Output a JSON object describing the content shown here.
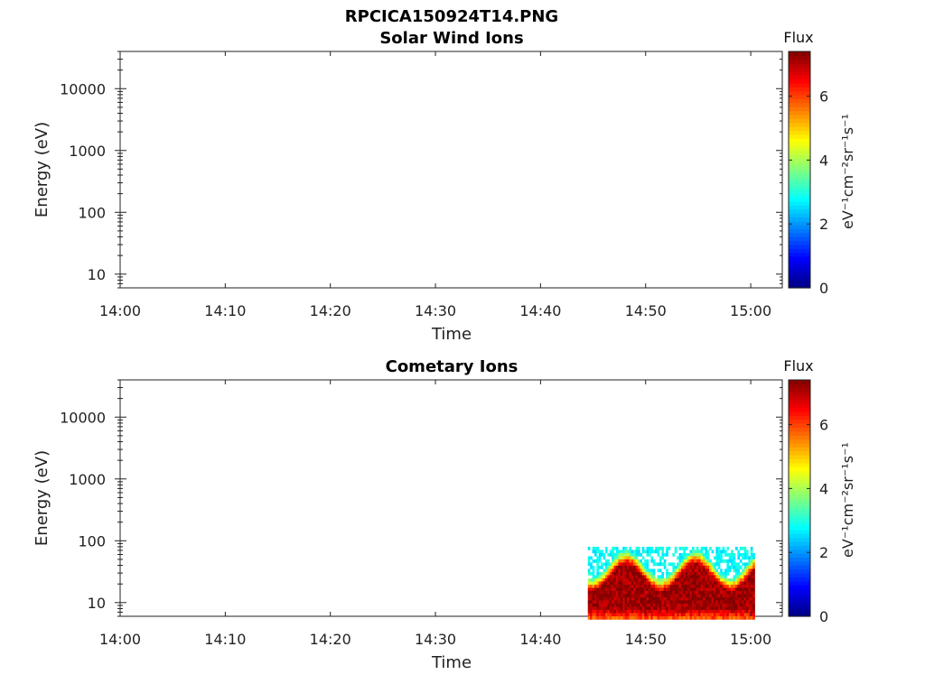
{
  "chart_data": [
    {
      "type": "heatmap",
      "suptitle": "RPCICA150924T14.PNG",
      "title": "Solar Wind Ions",
      "xlabel": "Time",
      "ylabel": "Energy (eV)",
      "x_ticks": [
        "14:00",
        "14:10",
        "14:20",
        "14:30",
        "14:40",
        "14:50",
        "15:00"
      ],
      "xlim_minutes": [
        0,
        63
      ],
      "y_scale": "log",
      "y_ticks": [
        10,
        100,
        1000,
        10000
      ],
      "y_tick_labels": [
        "10",
        "100",
        "1000",
        "10000"
      ],
      "ylim": [
        6,
        40000
      ],
      "colorbar": {
        "title": "Flux",
        "label": "eV⁻¹cm⁻²sr⁻¹s⁻¹",
        "ticks": [
          "0",
          "2",
          "4",
          "6"
        ],
        "range": [
          0,
          7.4
        ],
        "colormap": "jet"
      },
      "data": []
    },
    {
      "type": "heatmap",
      "title": "Cometary Ions",
      "xlabel": "Time",
      "ylabel": "Energy (eV)",
      "x_ticks": [
        "14:00",
        "14:10",
        "14:20",
        "14:30",
        "14:40",
        "14:50",
        "15:00"
      ],
      "xlim_minutes": [
        0,
        63
      ],
      "y_scale": "log",
      "y_ticks": [
        10,
        100,
        1000,
        10000
      ],
      "y_tick_labels": [
        "10",
        "100",
        "1000",
        "10000"
      ],
      "ylim": [
        6,
        40000
      ],
      "colorbar": {
        "title": "Flux",
        "label": "eV⁻¹cm⁻²sr⁻¹s⁻¹",
        "ticks": [
          "0",
          "2",
          "4",
          "6"
        ],
        "range": [
          0,
          7.4
        ],
        "colormap": "jet"
      },
      "data_region": {
        "time_start_minutes": 44.5,
        "time_end_minutes": 60.2,
        "energy_min_eV": 6,
        "energy_max_eV": 80,
        "peak_flux_energy_eV": 15,
        "background_flux": 2.5,
        "peak_flux": 7.2
      }
    }
  ]
}
